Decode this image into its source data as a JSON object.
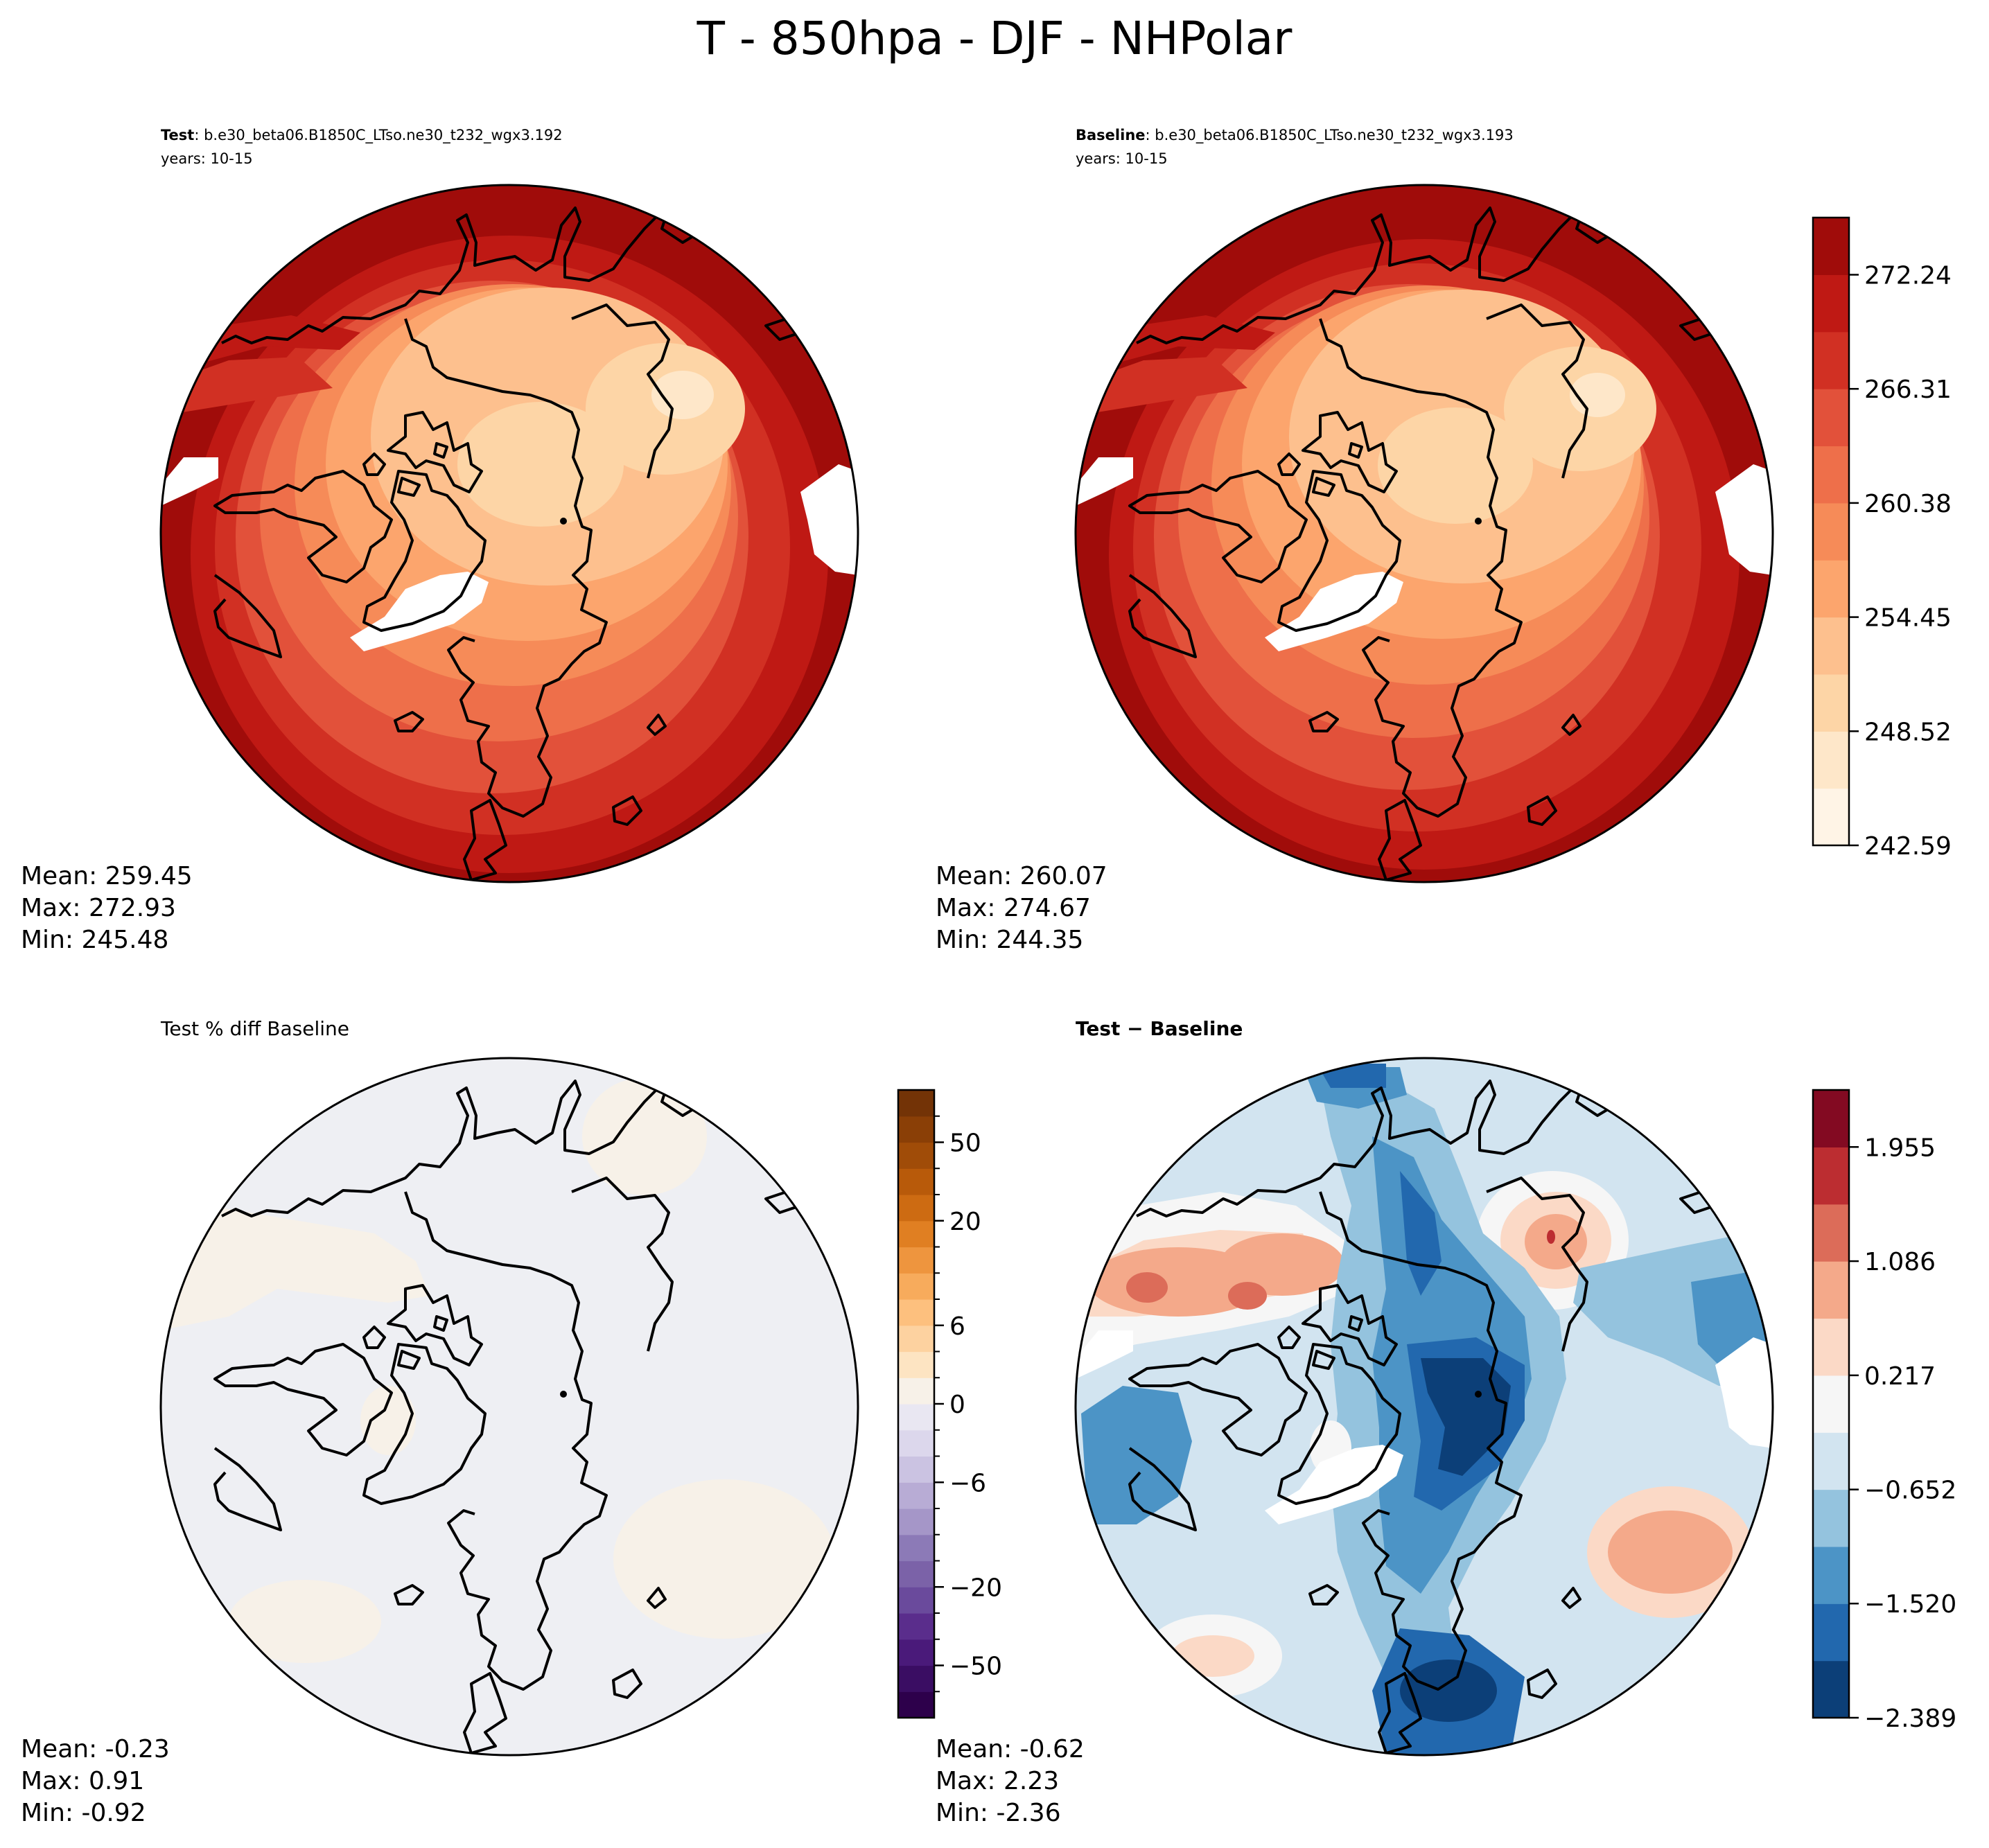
{
  "title": "T - 850hpa - DJF - NHPolar",
  "chart_data": [
    {
      "type": "heatmap",
      "projection": "north-polar-stereographic",
      "panel": "top-left",
      "title_bold": "Test",
      "title_rest": ": b.e30_beta06.B1850C_LTso.ne30_t232_wgx3.192",
      "subtitle": "years: 10-15",
      "stats": {
        "mean": "Mean: 259.45",
        "max": "Max: 272.93",
        "min": "Min: 245.48"
      },
      "field_levels": [
        242.59,
        245.56,
        248.52,
        251.49,
        254.45,
        257.42,
        260.38,
        263.35,
        266.31,
        269.28,
        272.24,
        275.21
      ]
    },
    {
      "type": "heatmap",
      "projection": "north-polar-stereographic",
      "panel": "top-right",
      "title_bold": "Baseline",
      "title_rest": ": b.e30_beta06.B1850C_LTso.ne30_t232_wgx3.193",
      "subtitle": "years: 10-15",
      "stats": {
        "mean": "Mean: 260.07",
        "max": "Max: 274.67",
        "min": "Min: 244.35"
      },
      "colorbar": {
        "colormap": "OrRd-like",
        "range": [
          242.59,
          275.21
        ],
        "tick_values": [
          242.59,
          248.52,
          254.45,
          260.38,
          266.31,
          272.24
        ],
        "tick_labels": [
          "242.59",
          "248.52",
          "254.45",
          "260.38",
          "266.31",
          "272.24"
        ],
        "colors": [
          "#fff4e6",
          "#fee7c9",
          "#fdd5a6",
          "#fdc08e",
          "#fca56d",
          "#f68b58",
          "#ee6f4a",
          "#e2513a",
          "#d13023",
          "#bf1914",
          "#a00c0a"
        ]
      }
    },
    {
      "type": "heatmap",
      "projection": "north-polar-stereographic",
      "panel": "bottom-left",
      "title": "Test % diff Baseline",
      "stats": {
        "mean": "Mean: -0.23",
        "max": "Max:  0.91",
        "min": "Min: -0.92"
      },
      "colorbar": {
        "colormap": "PuOr-like",
        "levels": [
          -100,
          -75,
          -50,
          -40,
          -30,
          -20,
          -15,
          -10,
          -8,
          -6,
          -4,
          -2,
          0,
          2,
          4,
          6,
          8,
          10,
          15,
          20,
          30,
          40,
          50,
          75,
          100
        ],
        "tick_values": [
          -50,
          -20,
          -6,
          0,
          6,
          20,
          50
        ],
        "tick_labels": [
          "−50",
          "−20",
          "−6",
          "0",
          "6",
          "20",
          "50"
        ],
        "colors": [
          "#2d004b",
          "#3a0d63",
          "#4a1a7a",
          "#5a2d8c",
          "#6a4a9c",
          "#7b62a8",
          "#8c7ab7",
          "#a596c8",
          "#b8acd5",
          "#cbc3e2",
          "#dcd7ec",
          "#e9e7f2",
          "#f7f1e8",
          "#fde4c2",
          "#fdd2a0",
          "#fdc07e",
          "#f7ab5c",
          "#ee953e",
          "#e07f22",
          "#cd6b12",
          "#b85a0a",
          "#a04c08",
          "#8a3f06",
          "#733306"
        ]
      }
    },
    {
      "type": "heatmap",
      "projection": "north-polar-stereographic",
      "panel": "bottom-right",
      "title_bold": "Test − Baseline",
      "stats": {
        "mean": "Mean: -0.62",
        "max": "Max:  2.23",
        "min": "Min: -2.36"
      },
      "colorbar": {
        "colormap": "RdBu_r",
        "range": [
          -2.389,
          2.389
        ],
        "tick_values": [
          -2.389,
          -1.52,
          -0.652,
          0.217,
          1.086,
          1.955
        ],
        "tick_labels": [
          "−2.389",
          "−1.520",
          "−0.652",
          "0.217",
          "1.086",
          "1.955"
        ],
        "colors": [
          "#0c3f78",
          "#2268ae",
          "#4c94c6",
          "#94c3de",
          "#d2e4f0",
          "#f6f6f6",
          "#fbd9c6",
          "#f4a98a",
          "#dc6c59",
          "#bc2d31",
          "#830a22"
        ]
      }
    }
  ]
}
